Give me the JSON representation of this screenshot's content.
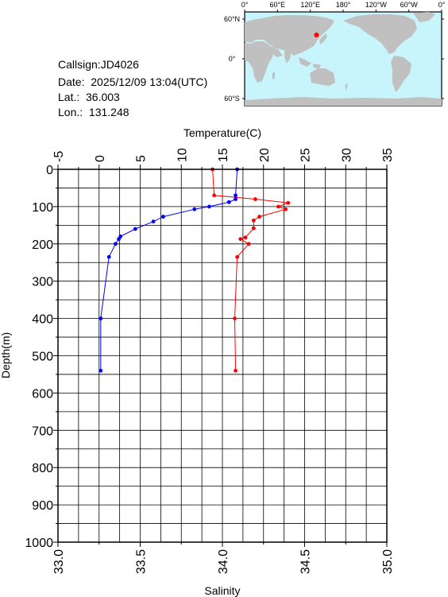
{
  "info": {
    "callsign": "Callsign:JD4026",
    "date": "Date:  2025/12/09 13:04(UTC)",
    "lat": "Lat.:  36.003",
    "lon": "Lon.:  131.248"
  },
  "map": {
    "top_ticks": [
      "0°",
      "60°E",
      "120°E",
      "180°",
      "120°W",
      "60°W",
      "0°"
    ],
    "right_ticks": [
      "60°N",
      "0°",
      "60°S"
    ],
    "ocean_color": "#c8f4fb",
    "land_color": "#c0c0c0",
    "marker_color": "#ff0000",
    "marker": {
      "lon": 131.248,
      "lat": 36.003
    }
  },
  "chart_data": {
    "type": "line",
    "ylabel": "Depth(m)",
    "xlabel_top": "Temperature(C)",
    "xlabel_bottom": "Salinity",
    "ylim": [
      0,
      1000
    ],
    "yticks": [
      "0",
      "100",
      "200",
      "300",
      "400",
      "500",
      "600",
      "700",
      "800",
      "900",
      "1000"
    ],
    "temperature_lim": [
      -5,
      35
    ],
    "temperature_ticks": [
      "-5",
      "0",
      "5",
      "10",
      "15",
      "20",
      "25",
      "30",
      "35"
    ],
    "salinity_lim": [
      33.0,
      35.0
    ],
    "salinity_ticks": [
      "33.0",
      "33.5",
      "34.0",
      "34.5",
      "35.0"
    ],
    "grid": true,
    "series": [
      {
        "color": "#ff0000",
        "axis": "temperature",
        "points": [
          [
            13.8,
            0
          ],
          [
            14.0,
            70
          ],
          [
            19.0,
            80
          ],
          [
            23.0,
            90
          ],
          [
            21.8,
            100
          ],
          [
            22.7,
            107
          ],
          [
            19.5,
            127
          ],
          [
            18.8,
            137
          ],
          [
            18.8,
            158
          ],
          [
            17.8,
            183
          ],
          [
            17.2,
            187
          ],
          [
            18.2,
            200
          ],
          [
            16.8,
            235
          ],
          [
            16.5,
            400
          ],
          [
            16.6,
            540
          ]
        ]
      },
      {
        "color": "#0000ff",
        "axis": "salinity",
        "points": [
          [
            34.09,
            0
          ],
          [
            34.08,
            70
          ],
          [
            34.08,
            80
          ],
          [
            34.04,
            88
          ],
          [
            33.92,
            100
          ],
          [
            33.83,
            107
          ],
          [
            33.64,
            127
          ],
          [
            33.58,
            140
          ],
          [
            33.47,
            160
          ],
          [
            33.38,
            180
          ],
          [
            33.37,
            187
          ],
          [
            33.35,
            200
          ],
          [
            33.31,
            235
          ],
          [
            33.26,
            400
          ],
          [
            33.26,
            540
          ]
        ]
      }
    ]
  }
}
